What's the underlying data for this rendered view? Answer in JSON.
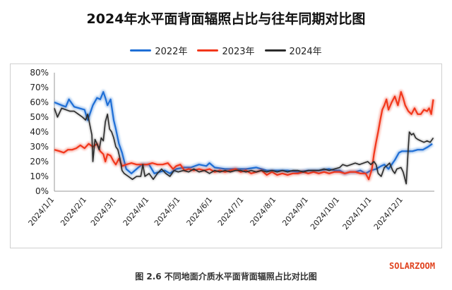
{
  "page": {
    "caption": "图 2.6 不同地面介质水平面背面辐照占比对比图",
    "watermark": "SOLARZOOM"
  },
  "chart_data": {
    "type": "line",
    "title": "2024年水平面背面辐照占比与往年同期对比图",
    "xlabel": "",
    "ylabel": "",
    "ylim": [
      0,
      80
    ],
    "y_ticks": [
      "0%",
      "10%",
      "20%",
      "30%",
      "40%",
      "50%",
      "60%",
      "70%",
      "80%"
    ],
    "x_ticks": [
      "2024/1/1",
      "2024/2/1",
      "2024/3/1",
      "2024/4/1",
      "2024/5/1",
      "2024/6/1",
      "2024/7/1",
      "2024/8/1",
      "2024/9/1",
      "2024/10/1",
      "2024/11/1",
      "2024/12/1"
    ],
    "x_tick_days": [
      1,
      32,
      61,
      92,
      122,
      153,
      183,
      214,
      245,
      275,
      306,
      336
    ],
    "xlim_days": [
      1,
      366
    ],
    "grid": false,
    "legend_position": "top",
    "series": [
      {
        "name": "2022年",
        "color": "#1f6fd6",
        "points": [
          [
            1,
            60
          ],
          [
            8,
            58
          ],
          [
            12,
            57
          ],
          [
            15,
            62
          ],
          [
            20,
            57
          ],
          [
            25,
            56
          ],
          [
            30,
            55
          ],
          [
            33,
            48
          ],
          [
            38,
            58
          ],
          [
            42,
            63
          ],
          [
            45,
            62
          ],
          [
            48,
            67
          ],
          [
            50,
            63
          ],
          [
            52,
            58
          ],
          [
            55,
            62
          ],
          [
            58,
            48
          ],
          [
            60,
            42
          ],
          [
            63,
            32
          ],
          [
            66,
            26
          ],
          [
            70,
            15
          ],
          [
            75,
            12
          ],
          [
            80,
            15
          ],
          [
            85,
            18
          ],
          [
            92,
            18
          ],
          [
            97,
            12
          ],
          [
            102,
            13
          ],
          [
            107,
            14
          ],
          [
            112,
            12
          ],
          [
            118,
            15
          ],
          [
            125,
            16
          ],
          [
            132,
            16
          ],
          [
            140,
            18
          ],
          [
            147,
            17
          ],
          [
            150,
            19
          ],
          [
            155,
            16
          ],
          [
            165,
            15
          ],
          [
            175,
            15
          ],
          [
            185,
            15
          ],
          [
            195,
            16
          ],
          [
            205,
            14
          ],
          [
            215,
            14
          ],
          [
            225,
            14
          ],
          [
            235,
            13
          ],
          [
            245,
            14
          ],
          [
            255,
            14
          ],
          [
            265,
            15
          ],
          [
            270,
            14
          ],
          [
            275,
            14
          ],
          [
            280,
            12
          ],
          [
            285,
            13
          ],
          [
            290,
            13
          ],
          [
            295,
            14
          ],
          [
            300,
            12
          ],
          [
            305,
            14
          ],
          [
            310,
            15
          ],
          [
            315,
            17
          ],
          [
            318,
            18
          ],
          [
            322,
            15
          ],
          [
            325,
            18
          ],
          [
            328,
            21
          ],
          [
            332,
            26
          ],
          [
            335,
            27
          ],
          [
            340,
            27
          ],
          [
            345,
            27
          ],
          [
            350,
            28
          ],
          [
            355,
            28
          ],
          [
            360,
            30
          ],
          [
            364,
            32
          ]
        ]
      },
      {
        "name": "2023年",
        "color": "#f2371b",
        "points": [
          [
            1,
            28
          ],
          [
            6,
            27
          ],
          [
            10,
            26
          ],
          [
            14,
            28
          ],
          [
            18,
            28
          ],
          [
            22,
            29
          ],
          [
            26,
            31
          ],
          [
            30,
            29
          ],
          [
            34,
            32
          ],
          [
            38,
            30
          ],
          [
            42,
            32
          ],
          [
            45,
            27
          ],
          [
            48,
            25
          ],
          [
            50,
            20
          ],
          [
            52,
            25
          ],
          [
            55,
            24
          ],
          [
            58,
            20
          ],
          [
            60,
            18
          ],
          [
            63,
            22
          ],
          [
            66,
            17
          ],
          [
            70,
            18
          ],
          [
            75,
            19
          ],
          [
            80,
            18
          ],
          [
            85,
            18
          ],
          [
            90,
            18
          ],
          [
            95,
            19
          ],
          [
            100,
            18
          ],
          [
            105,
            18
          ],
          [
            110,
            19
          ],
          [
            115,
            15
          ],
          [
            118,
            17
          ],
          [
            122,
            18
          ],
          [
            126,
            14
          ],
          [
            130,
            15
          ],
          [
            135,
            14
          ],
          [
            140,
            15
          ],
          [
            145,
            14
          ],
          [
            150,
            15
          ],
          [
            155,
            13
          ],
          [
            160,
            14
          ],
          [
            165,
            13
          ],
          [
            170,
            14
          ],
          [
            175,
            15
          ],
          [
            180,
            13
          ],
          [
            185,
            14
          ],
          [
            190,
            12
          ],
          [
            195,
            13
          ],
          [
            200,
            14
          ],
          [
            205,
            11
          ],
          [
            210,
            13
          ],
          [
            215,
            11
          ],
          [
            220,
            12
          ],
          [
            225,
            11
          ],
          [
            230,
            12
          ],
          [
            235,
            12
          ],
          [
            240,
            13
          ],
          [
            245,
            12
          ],
          [
            250,
            13
          ],
          [
            255,
            12
          ],
          [
            260,
            13
          ],
          [
            265,
            12
          ],
          [
            270,
            13
          ],
          [
            275,
            13
          ],
          [
            280,
            12
          ],
          [
            285,
            13
          ],
          [
            290,
            13
          ],
          [
            295,
            12
          ],
          [
            300,
            12
          ],
          [
            303,
            8
          ],
          [
            306,
            15
          ],
          [
            308,
            25
          ],
          [
            310,
            33
          ],
          [
            312,
            40
          ],
          [
            314,
            48
          ],
          [
            316,
            55
          ],
          [
            318,
            58
          ],
          [
            320,
            62
          ],
          [
            322,
            55
          ],
          [
            325,
            60
          ],
          [
            328,
            64
          ],
          [
            331,
            58
          ],
          [
            334,
            67
          ],
          [
            336,
            63
          ],
          [
            338,
            58
          ],
          [
            341,
            54
          ],
          [
            344,
            52
          ],
          [
            347,
            56
          ],
          [
            350,
            52
          ],
          [
            353,
            52
          ],
          [
            356,
            55
          ],
          [
            359,
            54
          ],
          [
            361,
            56
          ],
          [
            363,
            52
          ],
          [
            365,
            62
          ]
        ]
      },
      {
        "name": "2024年",
        "color": "#2b2b2b",
        "points": [
          [
            1,
            56
          ],
          [
            4,
            50
          ],
          [
            8,
            56
          ],
          [
            12,
            55
          ],
          [
            16,
            54
          ],
          [
            20,
            54
          ],
          [
            24,
            52
          ],
          [
            28,
            50
          ],
          [
            31,
            48
          ],
          [
            33,
            52
          ],
          [
            35,
            45
          ],
          [
            37,
            38
          ],
          [
            38,
            20
          ],
          [
            40,
            35
          ],
          [
            42,
            32
          ],
          [
            44,
            28
          ],
          [
            46,
            36
          ],
          [
            48,
            34
          ],
          [
            50,
            47
          ],
          [
            52,
            52
          ],
          [
            54,
            42
          ],
          [
            56,
            40
          ],
          [
            58,
            36
          ],
          [
            60,
            30
          ],
          [
            62,
            28
          ],
          [
            64,
            22
          ],
          [
            66,
            14
          ],
          [
            68,
            12
          ],
          [
            72,
            10
          ],
          [
            76,
            8
          ],
          [
            80,
            10
          ],
          [
            84,
            10
          ],
          [
            86,
            18
          ],
          [
            88,
            10
          ],
          [
            92,
            12
          ],
          [
            96,
            8
          ],
          [
            100,
            12
          ],
          [
            104,
            15
          ],
          [
            108,
            12
          ],
          [
            112,
            10
          ],
          [
            116,
            14
          ],
          [
            120,
            13
          ],
          [
            125,
            14
          ],
          [
            130,
            13
          ],
          [
            135,
            15
          ],
          [
            140,
            13
          ],
          [
            145,
            14
          ],
          [
            150,
            12
          ],
          [
            155,
            14
          ],
          [
            160,
            13
          ],
          [
            165,
            14
          ],
          [
            170,
            13
          ],
          [
            175,
            14
          ],
          [
            180,
            14
          ],
          [
            185,
            13
          ],
          [
            190,
            14
          ],
          [
            195,
            13
          ],
          [
            200,
            14
          ],
          [
            205,
            13
          ],
          [
            210,
            14
          ],
          [
            215,
            13
          ],
          [
            220,
            14
          ],
          [
            225,
            13
          ],
          [
            230,
            14
          ],
          [
            235,
            14
          ],
          [
            240,
            13
          ],
          [
            245,
            14
          ],
          [
            250,
            14
          ],
          [
            255,
            14
          ],
          [
            260,
            15
          ],
          [
            265,
            14
          ],
          [
            270,
            15
          ],
          [
            275,
            16
          ],
          [
            278,
            18
          ],
          [
            282,
            17
          ],
          [
            286,
            18
          ],
          [
            290,
            19
          ],
          [
            294,
            18
          ],
          [
            298,
            19
          ],
          [
            302,
            20
          ],
          [
            305,
            18
          ],
          [
            308,
            20
          ],
          [
            310,
            18
          ],
          [
            312,
            12
          ],
          [
            315,
            10
          ],
          [
            318,
            16
          ],
          [
            320,
            17
          ],
          [
            323,
            19
          ],
          [
            326,
            14
          ],
          [
            328,
            12
          ],
          [
            330,
            15
          ],
          [
            334,
            16
          ],
          [
            336,
            13
          ],
          [
            339,
            5
          ],
          [
            341,
            30
          ],
          [
            342,
            40
          ],
          [
            344,
            38
          ],
          [
            346,
            39
          ],
          [
            348,
            36
          ],
          [
            350,
            35
          ],
          [
            353,
            34
          ],
          [
            356,
            33
          ],
          [
            359,
            34
          ],
          [
            362,
            33
          ],
          [
            365,
            36
          ]
        ]
      }
    ]
  }
}
